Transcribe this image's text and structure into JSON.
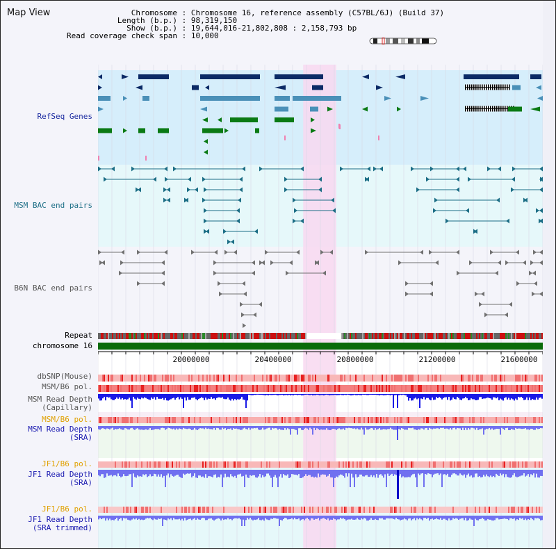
{
  "view_title": "Map View",
  "info": {
    "chromosome_key": "Chromosome",
    "chromosome_val": "Chromosome 16, reference assembly (C57BL/6J) (Build 37)",
    "length_key": "Length (b.p.)",
    "length_val": "98,319,150",
    "show_key": "Show (b.p.)",
    "show_val": "19,644,016-21,802,808 : 2,158,793 bp",
    "coverage_key": "Read coverage check span",
    "coverage_val": "10,000"
  },
  "tracks": {
    "refseq": "RefSeq Genes",
    "msm_bac": "MSM BAC end pairs",
    "b6n_bac": "B6N BAC end pairs",
    "repeat": "Repeat",
    "chromosome": "chromosome 16",
    "dbsnp": "dbSNP(Mouse)",
    "msm_b6_pol_1": "MSM/B6 pol.",
    "msm_depth_cap_1": "MSM Read Depth",
    "msm_depth_cap_2": "(Capillary)",
    "msm_b6_pol_2": "MSM/B6 pol.",
    "msm_depth_sra_1": "MSM Read Depth",
    "msm_depth_sra_2": "(SRA)",
    "jf1_b6_pol_1": "JF1/B6 pol.",
    "jf1_depth_sra_1": "JF1 Read Depth",
    "jf1_depth_sra_2": "(SRA)",
    "jf1_b6_pol_2": "JF1/B6 pol.",
    "jf1_depth_trim_1": "JF1 Read Depth",
    "jf1_depth_trim_2": "(SRA trimmed)"
  },
  "ruler": {
    "start_bp": 19644016,
    "end_bp": 21802808,
    "ticks": [
      "20000000",
      "20400000",
      "20800000",
      "21200000",
      "21600000"
    ]
  },
  "highlight": {
    "start_bp": 20640000,
    "end_bp": 20800000
  },
  "colors": {
    "highlight": "#f8d8f0",
    "refseq_bg": "#d6eefb",
    "bac_bg": "#e6f8fa",
    "navy": "#0b2a66",
    "steel": "#4a90b8",
    "green": "#0a7a14",
    "teal": "#1b6d85",
    "gray": "#707070",
    "chrom": "#0a6b0a",
    "depth_dark": "#1a1ae6",
    "depth_light": "#7070f0"
  }
}
